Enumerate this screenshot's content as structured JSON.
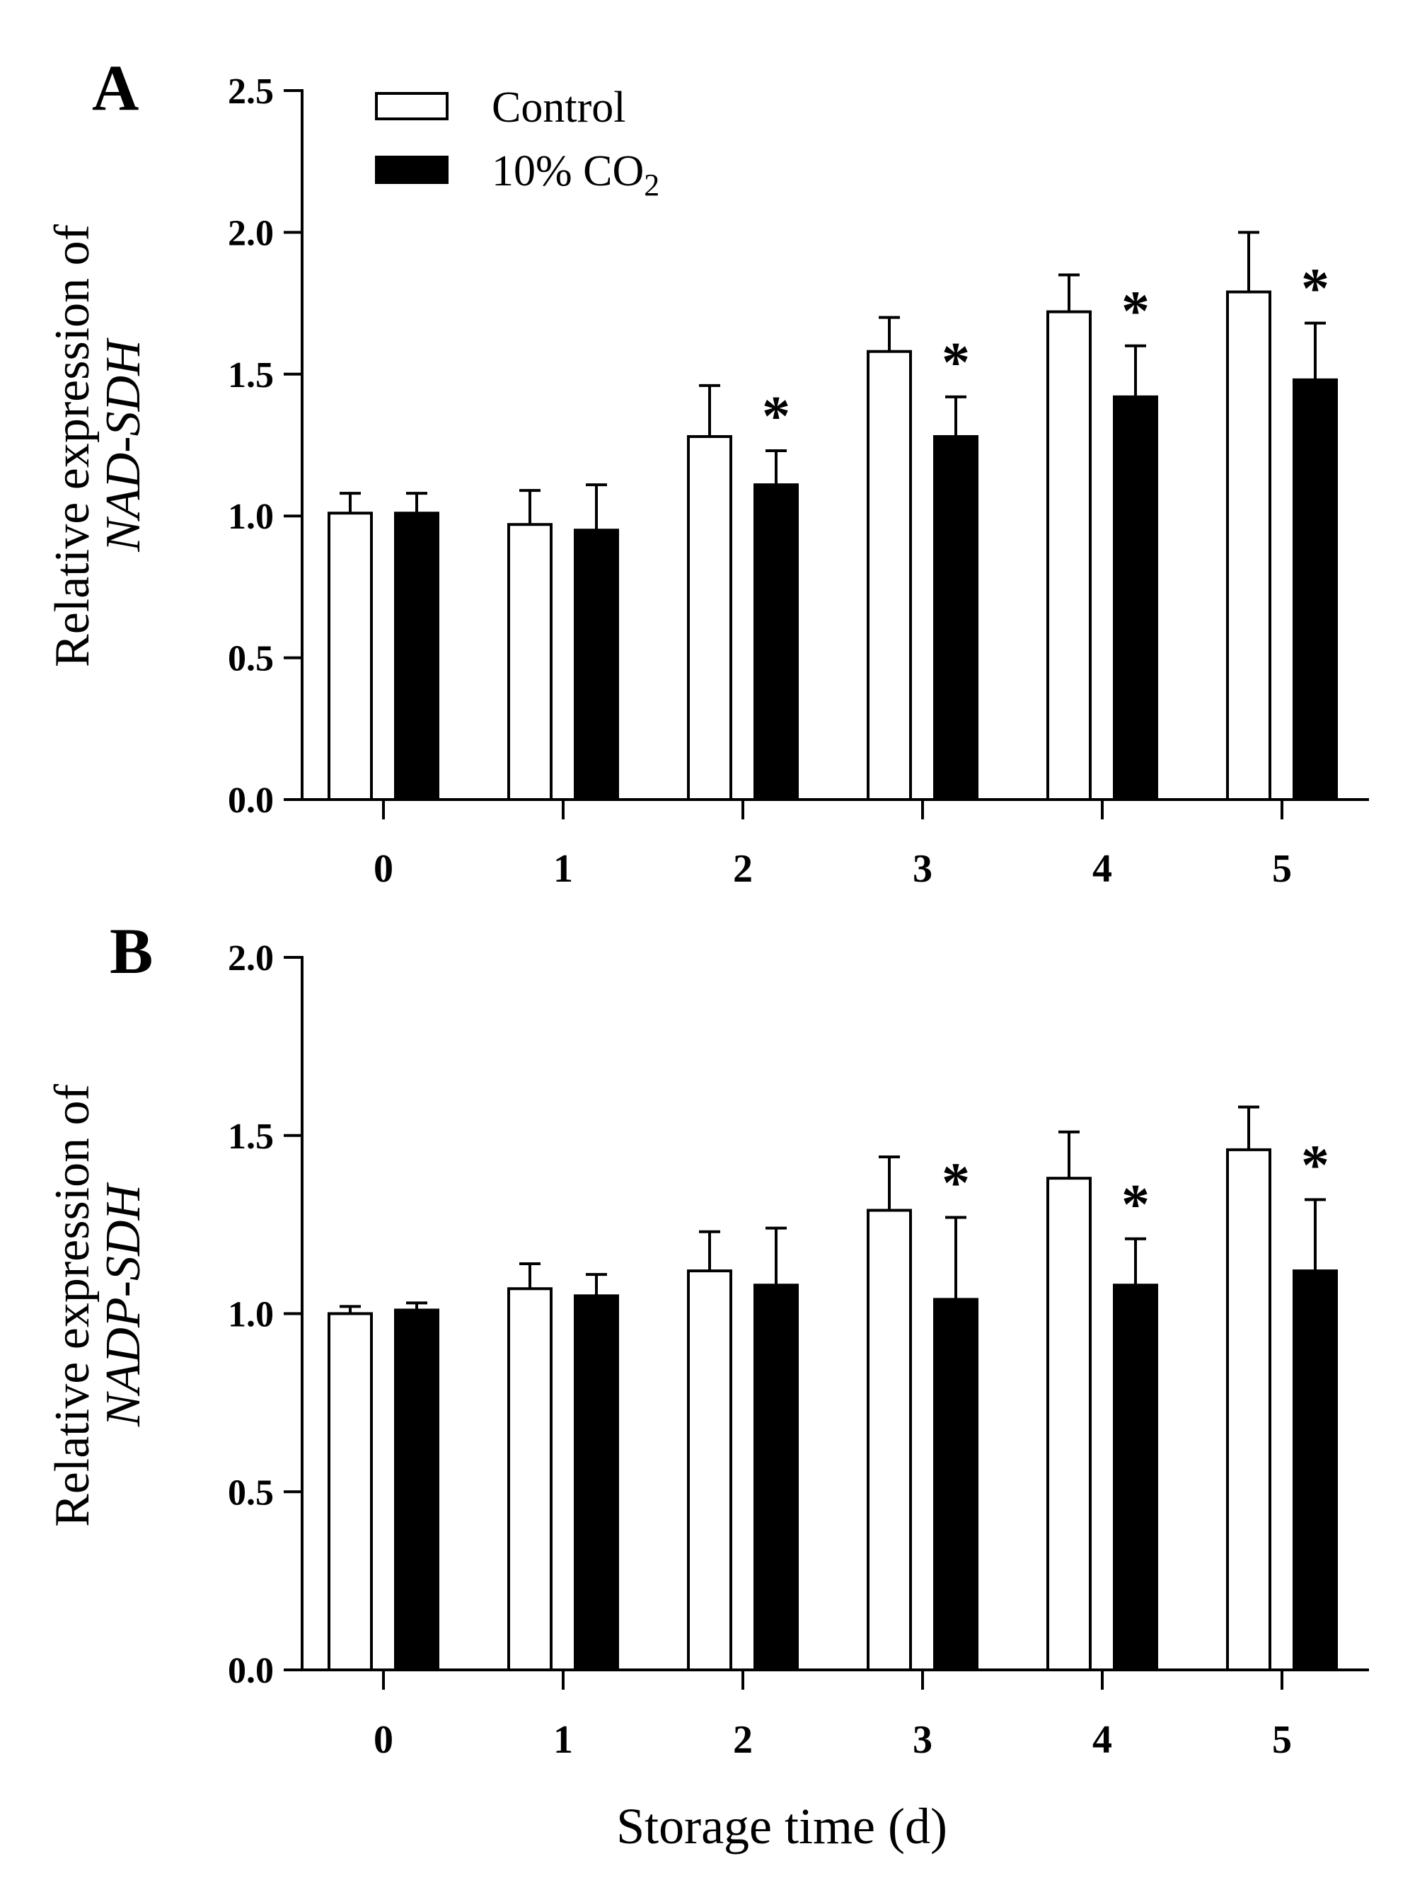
{
  "colors": {
    "control_fill": "#ffffff",
    "co2_fill": "#000000",
    "stroke": "#000000"
  },
  "legend": {
    "control_label": "Control",
    "co2_label_main": "10% CO",
    "co2_label_sub": "2"
  },
  "xlabel": "Storage time (d)",
  "chart_data": [
    {
      "type": "bar",
      "panel": "A",
      "ylabel_prefix": "Relative expression of",
      "ylabel_gene": "NAD-SDH",
      "categories": [
        "0",
        "1",
        "2",
        "3",
        "4",
        "5"
      ],
      "ylim": [
        0,
        2.5
      ],
      "yticks": [
        0,
        0.5,
        1.0,
        1.5,
        2.0,
        2.5
      ],
      "ytick_labels": [
        "0.0",
        "0.5",
        "1.0",
        "1.5",
        "2.0",
        "2.5"
      ],
      "series": [
        {
          "name": "Control",
          "values": [
            1.01,
            0.97,
            1.28,
            1.58,
            1.72,
            1.79
          ],
          "errors": [
            0.07,
            0.12,
            0.18,
            0.12,
            0.13,
            0.21
          ]
        },
        {
          "name": "10% CO2",
          "values": [
            1.01,
            0.95,
            1.11,
            1.28,
            1.42,
            1.48
          ],
          "errors": [
            0.07,
            0.16,
            0.12,
            0.14,
            0.18,
            0.2
          ]
        }
      ],
      "significance": [
        "",
        "",
        "*",
        "*",
        "*",
        "*"
      ]
    },
    {
      "type": "bar",
      "panel": "B",
      "ylabel_prefix": "Relative expression of",
      "ylabel_gene": "NADP-SDH",
      "categories": [
        "0",
        "1",
        "2",
        "3",
        "4",
        "5"
      ],
      "ylim": [
        0,
        2.0
      ],
      "yticks": [
        0,
        0.5,
        1.0,
        1.5,
        2.0
      ],
      "ytick_labels": [
        "0.0",
        "0.5",
        "1.0",
        "1.5",
        "2.0"
      ],
      "series": [
        {
          "name": "Control",
          "values": [
            1.0,
            1.07,
            1.12,
            1.29,
            1.38,
            1.46
          ],
          "errors": [
            0.02,
            0.07,
            0.11,
            0.15,
            0.13,
            0.12
          ]
        },
        {
          "name": "10% CO2",
          "values": [
            1.01,
            1.05,
            1.08,
            1.04,
            1.08,
            1.12
          ],
          "errors": [
            0.02,
            0.06,
            0.16,
            0.23,
            0.13,
            0.2
          ]
        }
      ],
      "significance": [
        "",
        "",
        "",
        "*",
        "*",
        "*"
      ]
    }
  ]
}
